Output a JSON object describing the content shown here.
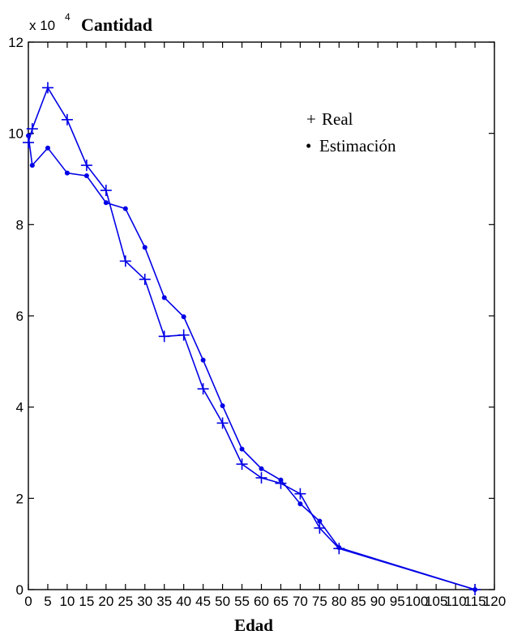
{
  "chart_data": {
    "type": "line",
    "title": "Cantidad",
    "xlabel": "Edad",
    "ylabel": "",
    "y_multiplier_label": "x 10",
    "y_multiplier_exponent": "4",
    "xlim": [
      0,
      120
    ],
    "ylim": [
      0,
      12
    ],
    "x_ticks": [
      "0",
      "5",
      "10",
      "15",
      "20",
      "25",
      "30",
      "35",
      "40",
      "45",
      "50",
      "55",
      "60",
      "65",
      "70",
      "75",
      "80",
      "85",
      "90",
      "95",
      "100",
      "105",
      "110",
      "115",
      "120"
    ],
    "y_ticks": [
      "0",
      "2",
      "4",
      "6",
      "8",
      "10",
      "12"
    ],
    "grid": false,
    "legend_position": "top-right",
    "series": [
      {
        "name": "Real",
        "legend_symbol": "+",
        "marker": "plus",
        "color": "#0000e6",
        "x": [
          0,
          1,
          5,
          10,
          15,
          20,
          25,
          30,
          35,
          40,
          45,
          50,
          55,
          60,
          65,
          70,
          75,
          80,
          115
        ],
        "y": [
          9.8,
          10.1,
          11.0,
          10.3,
          9.3,
          8.75,
          7.2,
          6.8,
          5.55,
          5.58,
          4.4,
          3.65,
          2.75,
          2.45,
          2.33,
          2.1,
          1.35,
          0.9,
          0.0
        ]
      },
      {
        "name": "Estimación",
        "legend_symbol": "•",
        "marker": "dot",
        "color": "#0000e6",
        "x": [
          0,
          1,
          5,
          10,
          15,
          20,
          25,
          30,
          35,
          40,
          45,
          50,
          55,
          60,
          65,
          70,
          75,
          80,
          115
        ],
        "y": [
          9.95,
          9.3,
          9.68,
          9.13,
          9.07,
          8.48,
          8.35,
          7.5,
          6.4,
          5.98,
          5.03,
          4.03,
          3.08,
          2.65,
          2.4,
          1.88,
          1.5,
          0.92,
          0.0
        ]
      }
    ]
  }
}
